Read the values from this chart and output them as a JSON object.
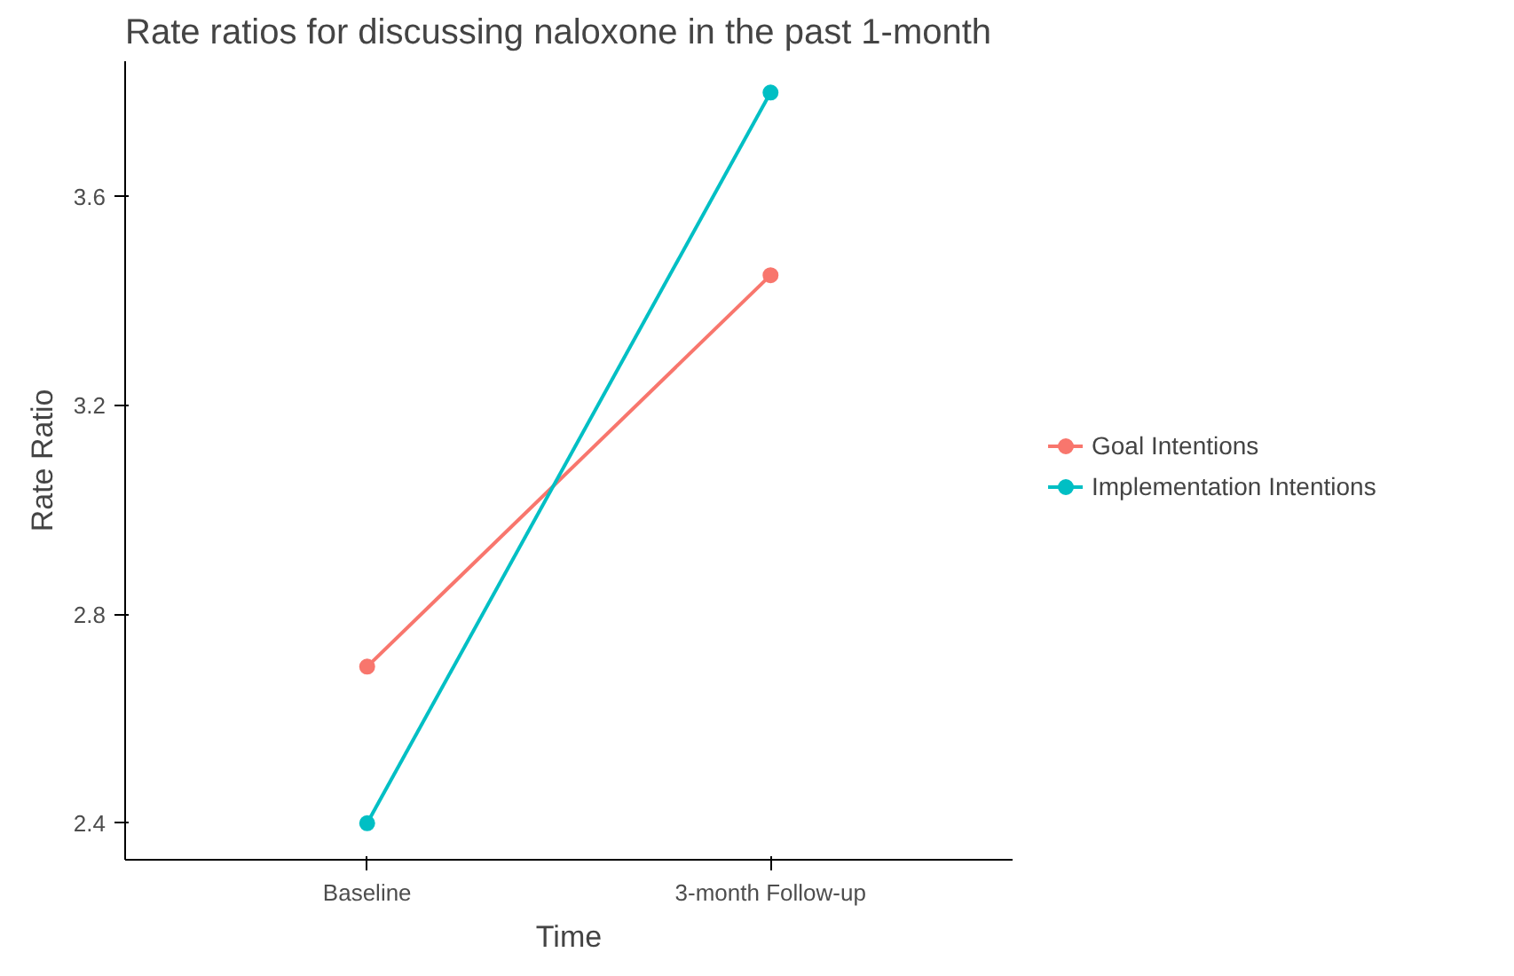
{
  "chart_data": {
    "type": "line",
    "title": "Rate ratios for discussing naloxone in the past 1-month",
    "xlabel": "Time",
    "ylabel": "Rate Ratio",
    "categories": [
      "Baseline",
      "3-month Follow-up"
    ],
    "series": [
      {
        "name": "Goal Intentions",
        "color": "#f8766d",
        "values": [
          2.7,
          3.45
        ]
      },
      {
        "name": "Implementation Intentions",
        "color": "#00bfc4",
        "values": [
          2.4,
          3.8
        ]
      }
    ],
    "ylim": [
      2.33,
      3.86
    ],
    "yticks": [
      2.4,
      2.8,
      3.2,
      3.6
    ],
    "grid": false,
    "legend": "right",
    "marker": "circle"
  }
}
